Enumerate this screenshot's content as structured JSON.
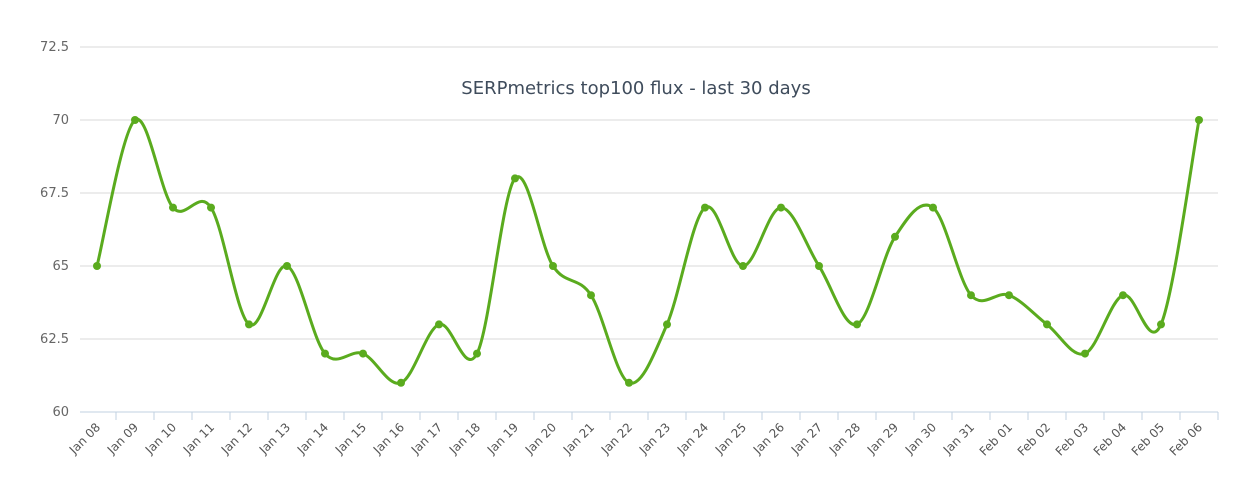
{
  "chart_data": {
    "type": "line",
    "title": "SERPmetrics top100 flux - last 30 days",
    "xlabel": "",
    "ylabel": "",
    "ylim": [
      60,
      72.5
    ],
    "yticks": [
      "60",
      "62.5",
      "65",
      "67.5",
      "70",
      "72.5"
    ],
    "categories": [
      "Jan 08",
      "Jan 09",
      "Jan 10",
      "Jan 11",
      "Jan 12",
      "Jan 13",
      "Jan 14",
      "Jan 15",
      "Jan 16",
      "Jan 17",
      "Jan 18",
      "Jan 19",
      "Jan 20",
      "Jan 21",
      "Jan 22",
      "Jan 23",
      "Jan 24",
      "Jan 25",
      "Jan 26",
      "Jan 27",
      "Jan 28",
      "Jan 29",
      "Jan 30",
      "Jan 31",
      "Feb 01",
      "Feb 02",
      "Feb 03",
      "Feb 04",
      "Feb 05",
      "Feb 06"
    ],
    "values": [
      65,
      70,
      67,
      67,
      63,
      65,
      62,
      62,
      61,
      63,
      62,
      68,
      65,
      64,
      61,
      63,
      67,
      65,
      67,
      65,
      63,
      66,
      67,
      64,
      64,
      63,
      62,
      64,
      63,
      70
    ],
    "grid": true,
    "legend": "none",
    "line_color": "#5aab1e"
  }
}
